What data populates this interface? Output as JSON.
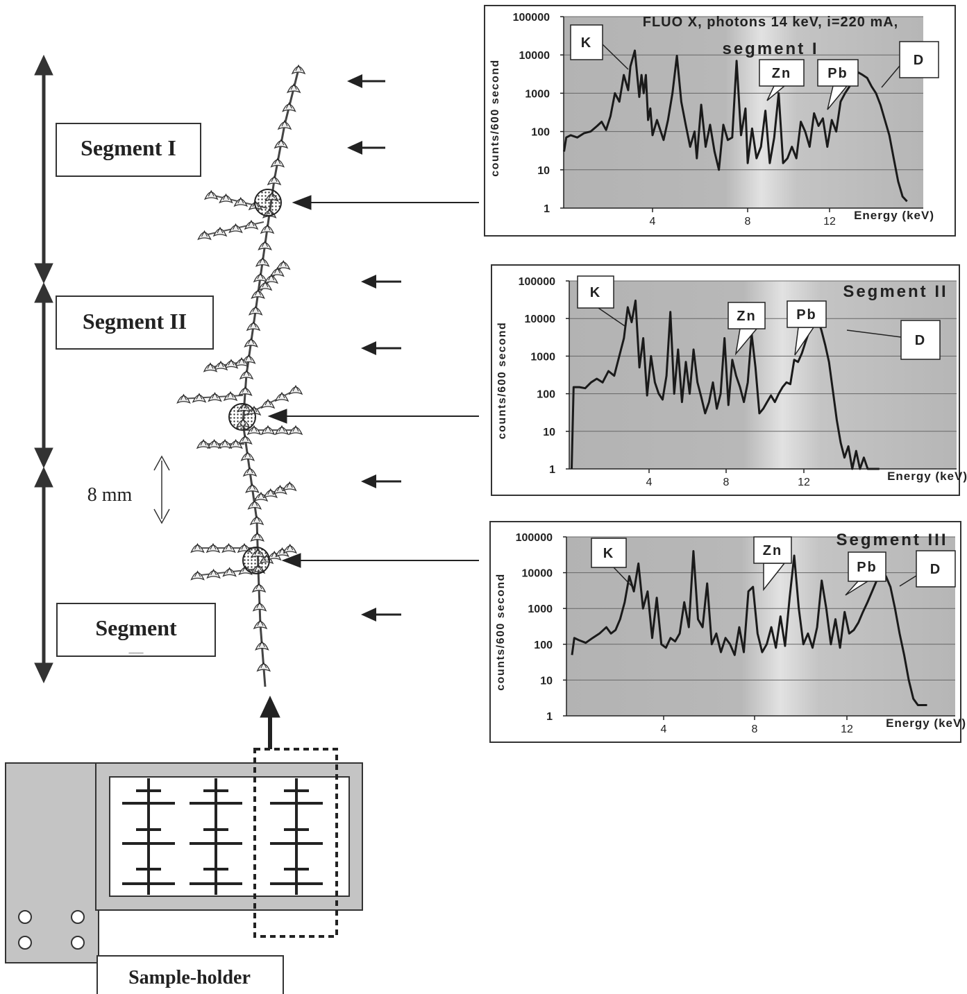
{
  "segments": {
    "s1": "Segment I",
    "s2": "Segment II",
    "s3": "Segment",
    "s3_mark": "___"
  },
  "scale_label": "8 mm",
  "sample_holder_label": "Sample-holder",
  "charts": [
    {
      "title_lines": [
        "FLUO X, photons 14 keV, i=220 mA,",
        "segment I"
      ],
      "ylabel": "counts/600 second",
      "xlabel": "Energy (keV)",
      "callouts": {
        "K": "K",
        "Zn": "Zn",
        "Pb": "Pb",
        "D": "D"
      }
    },
    {
      "title_lines": [
        "Segment II"
      ],
      "ylabel": "counts/600 second",
      "xlabel": "Energy (keV)",
      "callouts": {
        "K": "K",
        "Zn": "Zn",
        "Pb": "Pb",
        "D": "D"
      }
    },
    {
      "title_lines": [
        "Segment III"
      ],
      "ylabel": "counts/600 second",
      "xlabel": "Energy (keV)",
      "callouts": {
        "K": "K",
        "Zn": "Zn",
        "Pb": "Pb",
        "D": "D"
      }
    }
  ],
  "chart_data": [
    {
      "type": "line",
      "title": "FLUO X, photons 14 keV, i=220 mA, segment I",
      "xlabel": "Energy (keV)",
      "ylabel": "counts/600 second",
      "y_scale": "log",
      "ylim": [
        1,
        100000
      ],
      "xlim": [
        0,
        16
      ],
      "yticks": [
        1,
        10,
        100,
        1000,
        10000,
        100000
      ],
      "ytick_labels": [
        "1",
        "10",
        "100",
        "1000",
        "10000",
        "100000"
      ],
      "xticks": [
        4,
        8,
        12
      ],
      "xtick_labels": [
        "4",
        "8",
        "12"
      ],
      "grid": true,
      "series": [
        {
          "x": [
            0.0,
            0.1,
            0.3,
            0.6,
            0.9,
            1.2,
            1.5,
            1.7,
            1.9,
            2.1,
            2.3,
            2.5,
            2.7,
            2.9,
            3.0,
            3.2,
            3.4,
            3.5,
            3.6,
            3.7,
            3.8,
            3.9,
            4.0,
            4.2,
            4.5,
            4.7,
            4.9,
            5.1,
            5.3,
            5.5,
            5.7,
            5.9,
            6.0,
            6.2,
            6.4,
            6.6,
            6.8,
            7.0,
            7.2,
            7.4,
            7.6,
            7.8,
            8.0,
            8.2,
            8.3,
            8.5,
            8.7,
            8.9,
            9.1,
            9.3,
            9.5,
            9.7,
            9.9,
            10.1,
            10.3,
            10.5,
            10.7,
            10.9,
            11.1,
            11.3,
            11.5,
            11.7,
            11.9,
            12.1,
            12.3,
            12.5,
            12.7,
            12.9,
            13.1,
            13.3,
            13.5,
            13.7,
            13.9,
            14.1,
            14.3,
            14.5,
            14.7,
            14.9,
            15.1,
            15.3,
            15.5
          ],
          "y": [
            30,
            70,
            80,
            70,
            90,
            100,
            140,
            180,
            110,
            250,
            1000,
            600,
            3000,
            1200,
            5000,
            13000,
            800,
            3000,
            1000,
            3000,
            200,
            400,
            80,
            200,
            60,
            200,
            1000,
            9500,
            600,
            150,
            40,
            100,
            20,
            500,
            40,
            150,
            30,
            10,
            150,
            60,
            70,
            7000,
            80,
            400,
            15,
            120,
            20,
            40,
            350,
            15,
            70,
            1000,
            15,
            20,
            40,
            20,
            180,
            100,
            40,
            300,
            140,
            220,
            40,
            200,
            100,
            600,
            1000,
            1500,
            2500,
            3500,
            3000,
            2500,
            1500,
            1000,
            500,
            200,
            80,
            20,
            5,
            2,
            1.5
          ]
        }
      ],
      "annotations": [
        "K",
        "Zn",
        "Pb",
        "D"
      ]
    },
    {
      "type": "line",
      "title": "Segment II",
      "xlabel": "Energy (keV)",
      "ylabel": "counts/600 second",
      "y_scale": "log",
      "ylim": [
        1,
        100000
      ],
      "xlim": [
        0,
        20
      ],
      "yticks": [
        1,
        10,
        100,
        1000,
        10000,
        100000
      ],
      "ytick_labels": [
        "1",
        "10",
        "100",
        "1000",
        "10000",
        "100000"
      ],
      "xticks": [
        4,
        8,
        12
      ],
      "xtick_labels": [
        "4",
        "8",
        "12"
      ],
      "grid": true,
      "series": [
        {
          "x": [
            0.0,
            0.1,
            0.4,
            0.7,
            1.0,
            1.3,
            1.6,
            1.9,
            2.2,
            2.5,
            2.7,
            2.9,
            3.1,
            3.3,
            3.5,
            3.7,
            3.9,
            4.1,
            4.3,
            4.5,
            4.7,
            4.9,
            5.1,
            5.3,
            5.5,
            5.7,
            5.9,
            6.1,
            6.3,
            6.5,
            6.7,
            6.9,
            7.1,
            7.3,
            7.5,
            7.7,
            7.9,
            8.1,
            8.3,
            8.5,
            8.7,
            8.9,
            9.1,
            9.3,
            9.5,
            9.7,
            9.9,
            10.1,
            10.3,
            10.5,
            10.7,
            10.9,
            11.1,
            11.3,
            11.5,
            11.7,
            11.9,
            12.1,
            12.3,
            12.5,
            12.7,
            12.9,
            13.1,
            13.3,
            13.5,
            13.7,
            13.9,
            14.1,
            14.3,
            14.5,
            14.7,
            14.9,
            15.1,
            15.3,
            15.5,
            15.7,
            15.9
          ],
          "y": [
            1,
            150,
            150,
            140,
            200,
            250,
            200,
            400,
            300,
            1200,
            3000,
            20000,
            8000,
            30000,
            500,
            3000,
            90,
            1000,
            200,
            100,
            70,
            300,
            15000,
            100,
            1500,
            60,
            700,
            100,
            1500,
            200,
            80,
            30,
            60,
            200,
            40,
            100,
            3000,
            50,
            800,
            300,
            150,
            60,
            200,
            4000,
            500,
            30,
            40,
            60,
            90,
            60,
            100,
            150,
            200,
            180,
            800,
            700,
            1200,
            2500,
            5000,
            12000,
            10000,
            5000,
            2000,
            700,
            120,
            20,
            5,
            2,
            4,
            1,
            3,
            1,
            2,
            1,
            1,
            1,
            1
          ]
        }
      ],
      "annotations": [
        "K",
        "Zn",
        "Pb",
        "D"
      ]
    },
    {
      "type": "line",
      "title": "Segment III",
      "xlabel": "Energy (keV)",
      "ylabel": "counts/600 second",
      "y_scale": "log",
      "ylim": [
        1,
        100000
      ],
      "xlim": [
        0,
        16
      ],
      "yticks": [
        1,
        10,
        100,
        1000,
        10000,
        100000
      ],
      "ytick_labels": [
        "1",
        "10",
        "100",
        "1000",
        "10000",
        "100000"
      ],
      "xticks": [
        4,
        8,
        12
      ],
      "xtick_labels": [
        "4",
        "8",
        "12"
      ],
      "grid": true,
      "series": [
        {
          "x": [
            0.0,
            0.1,
            0.3,
            0.6,
            0.9,
            1.2,
            1.5,
            1.7,
            1.9,
            2.1,
            2.3,
            2.5,
            2.7,
            2.9,
            3.1,
            3.3,
            3.5,
            3.7,
            3.9,
            4.1,
            4.3,
            4.5,
            4.7,
            4.9,
            5.1,
            5.3,
            5.5,
            5.7,
            5.9,
            6.1,
            6.3,
            6.5,
            6.7,
            6.9,
            7.1,
            7.3,
            7.5,
            7.7,
            7.9,
            8.1,
            8.3,
            8.5,
            8.7,
            8.9,
            9.1,
            9.3,
            9.5,
            9.7,
            9.9,
            10.1,
            10.3,
            10.5,
            10.7,
            10.9,
            11.1,
            11.3,
            11.5,
            11.7,
            11.9,
            12.1,
            12.3,
            12.5,
            12.7,
            12.9,
            13.1,
            13.3,
            13.5,
            13.7,
            13.9,
            14.1,
            14.3,
            14.5,
            14.7,
            14.9,
            15.1,
            15.3,
            15.5
          ],
          "y": [
            50,
            150,
            130,
            110,
            150,
            200,
            300,
            200,
            250,
            500,
            1500,
            8000,
            3000,
            18000,
            1000,
            3000,
            150,
            2000,
            100,
            80,
            150,
            120,
            200,
            1500,
            300,
            40000,
            500,
            300,
            5000,
            100,
            200,
            60,
            150,
            100,
            50,
            300,
            60,
            3000,
            4000,
            200,
            60,
            100,
            300,
            80,
            600,
            90,
            2000,
            30000,
            1000,
            100,
            200,
            80,
            300,
            6000,
            1000,
            100,
            500,
            80,
            800,
            200,
            250,
            400,
            800,
            1500,
            3000,
            6000,
            9000,
            8000,
            4000,
            1000,
            200,
            50,
            10,
            3,
            2,
            2,
            2
          ]
        }
      ],
      "annotations": [
        "K",
        "Zn",
        "Pb",
        "D"
      ]
    }
  ]
}
